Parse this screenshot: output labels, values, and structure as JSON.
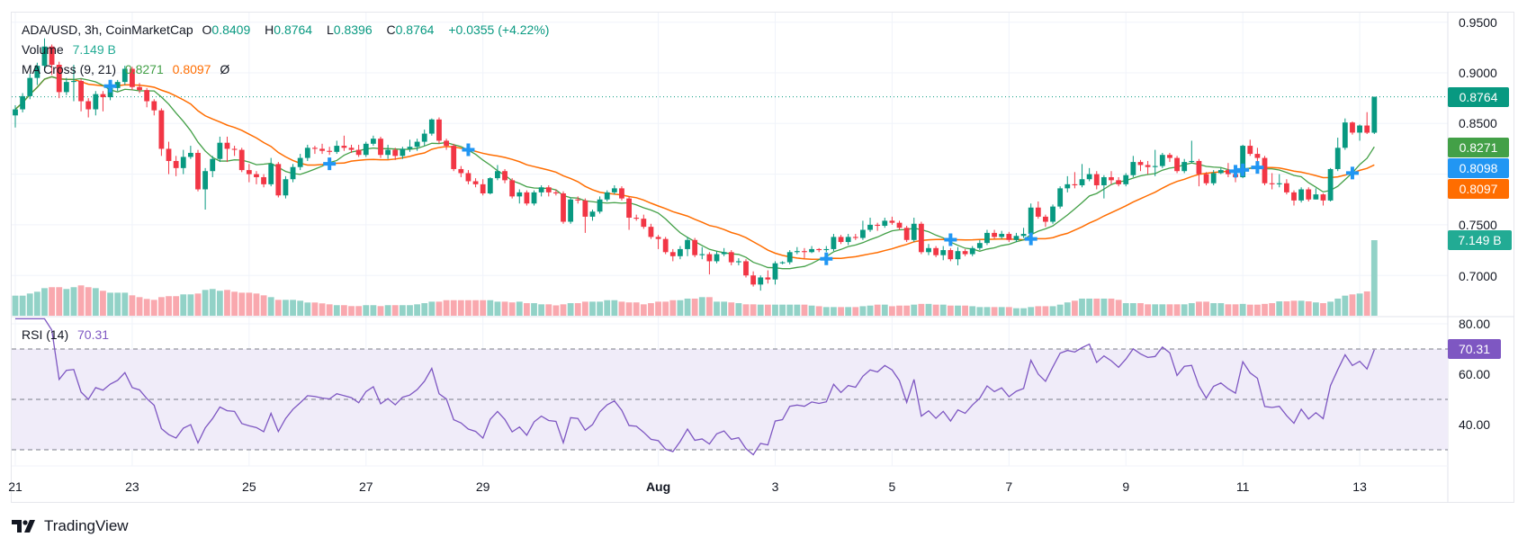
{
  "legend": {
    "symbol": "ADA/USD, 3h, CoinMarketCap",
    "o_label": "O",
    "o": "0.8409",
    "h_label": "H",
    "h": "0.8764",
    "l_label": "L",
    "l": "0.8396",
    "c_label": "C",
    "c": "0.8764",
    "change": "+0.0355 (+4.22%)",
    "volume_label": "Volume",
    "volume_value": "7.149 B",
    "ma_label": "MA Cross (9, 21)",
    "ma_fast": "0.8271",
    "ma_slow": "0.8097",
    "ma_extra": "Ø",
    "rsi_label": "RSI (14)",
    "rsi_value": "70.31"
  },
  "price_axis": [
    "0.9500",
    "0.9000",
    "0.8500",
    "0.7500",
    "0.7000"
  ],
  "rsi_axis": [
    "80.00",
    "60.00",
    "40.00"
  ],
  "tags": {
    "last_price": "0.8764",
    "ma_fast": "0.8271",
    "cross": "0.8098",
    "ma_slow": "0.8097",
    "volume": "7.149 B",
    "rsi": "70.31"
  },
  "date_axis": [
    "21",
    "23",
    "25",
    "27",
    "29",
    "Aug",
    "3",
    "5",
    "7",
    "9",
    "11",
    "13"
  ],
  "brand": "TradingView",
  "colors": {
    "up": "#089981",
    "down": "#f23645",
    "vol_up": "#92d2c7",
    "vol_down": "#f9a8ae",
    "ma_fast": "#43a047",
    "ma_slow": "#ff6d00",
    "cross": "#2196f3",
    "rsi": "#7e57c2",
    "rsi_band": "#f0ecf9"
  },
  "chart_data": {
    "type": "candlestick",
    "title": "ADA/USD, 3h, CoinMarketCap",
    "ylim": [
      0.67,
      0.96
    ],
    "rsi_levels": [
      70,
      50,
      30
    ],
    "rsi_ylim": [
      25,
      82
    ],
    "open": [
      0.858,
      0.864,
      0.877,
      0.895,
      0.907,
      0.926,
      0.908,
      0.881,
      0.891,
      0.892,
      0.872,
      0.864,
      0.879,
      0.876,
      0.885,
      0.891,
      0.904,
      0.886,
      0.883,
      0.872,
      0.863,
      0.825,
      0.813,
      0.806,
      0.817,
      0.821,
      0.785,
      0.803,
      0.815,
      0.831,
      0.825,
      0.824,
      0.804,
      0.8,
      0.797,
      0.79,
      0.81,
      0.779,
      0.795,
      0.807,
      0.816,
      0.826,
      0.825,
      0.823,
      0.822,
      0.828,
      0.826,
      0.824,
      0.819,
      0.83,
      0.835,
      0.819,
      0.824,
      0.818,
      0.825,
      0.827,
      0.832,
      0.84,
      0.854,
      0.833,
      0.828,
      0.805,
      0.801,
      0.793,
      0.79,
      0.781,
      0.796,
      0.803,
      0.794,
      0.778,
      0.782,
      0.771,
      0.782,
      0.787,
      0.782,
      0.781,
      0.753,
      0.775,
      0.774,
      0.758,
      0.763,
      0.775,
      0.782,
      0.786,
      0.776,
      0.757,
      0.756,
      0.748,
      0.738,
      0.736,
      0.723,
      0.719,
      0.726,
      0.735,
      0.72,
      0.721,
      0.714,
      0.721,
      0.723,
      0.713,
      0.714,
      0.7,
      0.691,
      0.698,
      0.696,
      0.712,
      0.713,
      0.723,
      0.724,
      0.723,
      0.726,
      0.725,
      0.726,
      0.738,
      0.733,
      0.738,
      0.737,
      0.745,
      0.75,
      0.749,
      0.754,
      0.752,
      0.747,
      0.735,
      0.751,
      0.723,
      0.727,
      0.72,
      0.725,
      0.716,
      0.724,
      0.721,
      0.727,
      0.732,
      0.742,
      0.738,
      0.741,
      0.735,
      0.739,
      0.741,
      0.767,
      0.758,
      0.753,
      0.768,
      0.786,
      0.79,
      0.789,
      0.795,
      0.8,
      0.789,
      0.797,
      0.794,
      0.79,
      0.799,
      0.812,
      0.809,
      0.807,
      0.808,
      0.819,
      0.816,
      0.803,
      0.812,
      0.813,
      0.8,
      0.791,
      0.801,
      0.804,
      0.8,
      0.797,
      0.828,
      0.82,
      0.816,
      0.791,
      0.79,
      0.791,
      0.782,
      0.774,
      0.785,
      0.775,
      0.78,
      0.774,
      0.805,
      0.826,
      0.851,
      0.841,
      0.848,
      0.8409
    ],
    "high": [
      0.868,
      0.88,
      0.899,
      0.91,
      0.934,
      0.928,
      0.911,
      0.895,
      0.908,
      0.894,
      0.875,
      0.882,
      0.882,
      0.889,
      0.893,
      0.907,
      0.906,
      0.89,
      0.885,
      0.874,
      0.865,
      0.832,
      0.818,
      0.824,
      0.828,
      0.824,
      0.806,
      0.818,
      0.837,
      0.837,
      0.828,
      0.826,
      0.81,
      0.803,
      0.8,
      0.816,
      0.812,
      0.798,
      0.81,
      0.82,
      0.829,
      0.828,
      0.83,
      0.827,
      0.833,
      0.838,
      0.829,
      0.829,
      0.832,
      0.838,
      0.837,
      0.829,
      0.826,
      0.827,
      0.834,
      0.835,
      0.844,
      0.855,
      0.856,
      0.835,
      0.83,
      0.808,
      0.804,
      0.796,
      0.795,
      0.797,
      0.809,
      0.805,
      0.796,
      0.785,
      0.784,
      0.784,
      0.789,
      0.789,
      0.785,
      0.783,
      0.777,
      0.778,
      0.776,
      0.765,
      0.778,
      0.784,
      0.789,
      0.788,
      0.778,
      0.76,
      0.76,
      0.751,
      0.74,
      0.738,
      0.726,
      0.729,
      0.738,
      0.737,
      0.728,
      0.723,
      0.724,
      0.727,
      0.725,
      0.717,
      0.716,
      0.704,
      0.7,
      0.705,
      0.714,
      0.714,
      0.725,
      0.728,
      0.727,
      0.729,
      0.727,
      0.729,
      0.741,
      0.74,
      0.741,
      0.741,
      0.754,
      0.757,
      0.752,
      0.757,
      0.758,
      0.754,
      0.749,
      0.757,
      0.753,
      0.731,
      0.729,
      0.729,
      0.727,
      0.728,
      0.726,
      0.729,
      0.735,
      0.745,
      0.745,
      0.744,
      0.743,
      0.742,
      0.747,
      0.771,
      0.773,
      0.76,
      0.77,
      0.788,
      0.798,
      0.802,
      0.81,
      0.806,
      0.803,
      0.799,
      0.803,
      0.797,
      0.801,
      0.818,
      0.814,
      0.813,
      0.824,
      0.821,
      0.821,
      0.818,
      0.815,
      0.833,
      0.815,
      0.802,
      0.804,
      0.806,
      0.811,
      0.804,
      0.829,
      0.834,
      0.826,
      0.818,
      0.801,
      0.8,
      0.795,
      0.784,
      0.787,
      0.787,
      0.786,
      0.781,
      0.806,
      0.836,
      0.855,
      0.852,
      0.849,
      0.8612,
      0.8764
    ],
    "low": [
      0.846,
      0.861,
      0.874,
      0.888,
      0.904,
      0.898,
      0.875,
      0.878,
      0.872,
      0.862,
      0.856,
      0.858,
      0.862,
      0.873,
      0.882,
      0.888,
      0.883,
      0.88,
      0.866,
      0.858,
      0.818,
      0.8,
      0.798,
      0.8,
      0.815,
      0.783,
      0.765,
      0.797,
      0.812,
      0.812,
      0.818,
      0.802,
      0.792,
      0.79,
      0.787,
      0.788,
      0.777,
      0.776,
      0.792,
      0.804,
      0.813,
      0.82,
      0.82,
      0.819,
      0.82,
      0.823,
      0.821,
      0.817,
      0.817,
      0.828,
      0.816,
      0.815,
      0.814,
      0.815,
      0.822,
      0.823,
      0.828,
      0.838,
      0.83,
      0.824,
      0.803,
      0.797,
      0.79,
      0.787,
      0.779,
      0.78,
      0.794,
      0.791,
      0.776,
      0.771,
      0.769,
      0.769,
      0.778,
      0.778,
      0.779,
      0.751,
      0.751,
      0.771,
      0.742,
      0.754,
      0.761,
      0.773,
      0.78,
      0.774,
      0.745,
      0.754,
      0.746,
      0.736,
      0.726,
      0.721,
      0.714,
      0.716,
      0.719,
      0.718,
      0.716,
      0.701,
      0.712,
      0.719,
      0.71,
      0.71,
      0.698,
      0.689,
      0.685,
      0.692,
      0.691,
      0.711,
      0.711,
      0.721,
      0.717,
      0.722,
      0.723,
      0.723,
      0.724,
      0.731,
      0.73,
      0.735,
      0.735,
      0.743,
      0.744,
      0.747,
      0.75,
      0.745,
      0.733,
      0.733,
      0.721,
      0.72,
      0.718,
      0.715,
      0.714,
      0.71,
      0.719,
      0.719,
      0.725,
      0.73,
      0.736,
      0.736,
      0.733,
      0.733,
      0.737,
      0.739,
      0.756,
      0.748,
      0.751,
      0.766,
      0.782,
      0.786,
      0.787,
      0.793,
      0.785,
      0.776,
      0.79,
      0.788,
      0.788,
      0.797,
      0.803,
      0.8,
      0.798,
      0.806,
      0.812,
      0.801,
      0.801,
      0.811,
      0.788,
      0.789,
      0.789,
      0.8,
      0.797,
      0.792,
      0.796,
      0.818,
      0.802,
      0.789,
      0.785,
      0.787,
      0.78,
      0.769,
      0.772,
      0.773,
      0.775,
      0.769,
      0.773,
      0.803,
      0.824,
      0.839,
      0.833,
      0.8396,
      0.8396
    ],
    "close": [
      0.864,
      0.877,
      0.895,
      0.907,
      0.926,
      0.908,
      0.881,
      0.891,
      0.892,
      0.872,
      0.864,
      0.879,
      0.876,
      0.885,
      0.891,
      0.904,
      0.886,
      0.883,
      0.872,
      0.863,
      0.825,
      0.813,
      0.806,
      0.817,
      0.821,
      0.785,
      0.803,
      0.815,
      0.831,
      0.825,
      0.824,
      0.804,
      0.8,
      0.797,
      0.79,
      0.81,
      0.779,
      0.795,
      0.807,
      0.816,
      0.826,
      0.825,
      0.823,
      0.822,
      0.828,
      0.826,
      0.824,
      0.819,
      0.83,
      0.835,
      0.819,
      0.824,
      0.818,
      0.825,
      0.827,
      0.832,
      0.84,
      0.854,
      0.833,
      0.828,
      0.805,
      0.801,
      0.793,
      0.79,
      0.781,
      0.796,
      0.803,
      0.794,
      0.778,
      0.782,
      0.771,
      0.782,
      0.787,
      0.782,
      0.781,
      0.753,
      0.775,
      0.774,
      0.758,
      0.763,
      0.775,
      0.782,
      0.786,
      0.776,
      0.757,
      0.756,
      0.748,
      0.738,
      0.736,
      0.723,
      0.719,
      0.726,
      0.735,
      0.72,
      0.721,
      0.714,
      0.721,
      0.723,
      0.713,
      0.714,
      0.7,
      0.691,
      0.698,
      0.696,
      0.712,
      0.713,
      0.723,
      0.724,
      0.723,
      0.726,
      0.725,
      0.726,
      0.738,
      0.733,
      0.738,
      0.737,
      0.745,
      0.75,
      0.749,
      0.754,
      0.752,
      0.747,
      0.735,
      0.751,
      0.723,
      0.727,
      0.72,
      0.725,
      0.716,
      0.724,
      0.721,
      0.727,
      0.732,
      0.742,
      0.738,
      0.741,
      0.735,
      0.739,
      0.741,
      0.767,
      0.758,
      0.753,
      0.768,
      0.786,
      0.79,
      0.789,
      0.795,
      0.8,
      0.789,
      0.797,
      0.794,
      0.79,
      0.799,
      0.812,
      0.809,
      0.807,
      0.808,
      0.819,
      0.816,
      0.803,
      0.812,
      0.813,
      0.8,
      0.791,
      0.801,
      0.804,
      0.8,
      0.797,
      0.828,
      0.82,
      0.816,
      0.791,
      0.79,
      0.791,
      0.782,
      0.774,
      0.785,
      0.775,
      0.78,
      0.774,
      0.805,
      0.826,
      0.851,
      0.841,
      0.848,
      0.8409,
      0.8764
    ],
    "volume_billions": [
      1.9,
      1.9,
      2.1,
      2.27,
      2.61,
      2.7,
      2.7,
      2.53,
      2.7,
      2.87,
      2.7,
      2.61,
      2.36,
      2.18,
      2.18,
      2.18,
      1.93,
      1.76,
      1.59,
      1.5,
      1.76,
      1.85,
      1.85,
      2.02,
      2.02,
      2.1,
      2.44,
      2.53,
      2.36,
      2.44,
      2.27,
      2.18,
      2.18,
      2.1,
      1.93,
      1.76,
      1.5,
      1.5,
      1.5,
      1.42,
      1.25,
      1.25,
      1.17,
      1.08,
      1.0,
      1.0,
      0.91,
      0.91,
      1.0,
      1.0,
      0.91,
      1.0,
      1.0,
      1.0,
      1.0,
      1.08,
      1.19,
      1.33,
      1.33,
      1.47,
      1.47,
      1.47,
      1.47,
      1.47,
      1.47,
      1.47,
      1.33,
      1.33,
      1.26,
      1.33,
      1.19,
      1.19,
      1.08,
      1.08,
      0.98,
      1.08,
      1.19,
      1.19,
      1.33,
      1.33,
      1.33,
      1.47,
      1.47,
      1.33,
      1.26,
      1.26,
      1.08,
      1.19,
      1.33,
      1.33,
      1.47,
      1.47,
      1.62,
      1.62,
      1.76,
      1.76,
      1.33,
      1.33,
      1.26,
      1.19,
      1.08,
      1.08,
      1.05,
      1.05,
      1.05,
      1.05,
      1.05,
      1.05,
      1.05,
      0.96,
      0.9,
      0.82,
      0.82,
      0.82,
      0.82,
      0.82,
      0.9,
      0.96,
      1.05,
      1.05,
      0.9,
      0.96,
      0.96,
      1.05,
      1.12,
      1.12,
      1.05,
      1.05,
      0.96,
      0.96,
      0.96,
      0.9,
      0.82,
      0.82,
      0.82,
      0.82,
      0.82,
      0.71,
      0.71,
      0.82,
      0.9,
      0.9,
      0.9,
      1.05,
      1.26,
      1.42,
      1.62,
      1.62,
      1.62,
      1.62,
      1.62,
      1.5,
      1.19,
      1.19,
      1.19,
      1.08,
      1.08,
      1.08,
      1.08,
      1.08,
      1.08,
      1.19,
      1.33,
      1.33,
      1.19,
      1.19,
      1.08,
      1.08,
      1.12,
      1.05,
      1.05,
      1.12,
      1.19,
      1.36,
      1.36,
      1.42,
      1.42,
      1.36,
      1.26,
      1.19,
      1.33,
      1.62,
      1.9,
      2.02,
      2.1,
      2.3,
      7.149
    ],
    "ma_periods": [
      9,
      21
    ],
    "rsi_period": 14
  }
}
